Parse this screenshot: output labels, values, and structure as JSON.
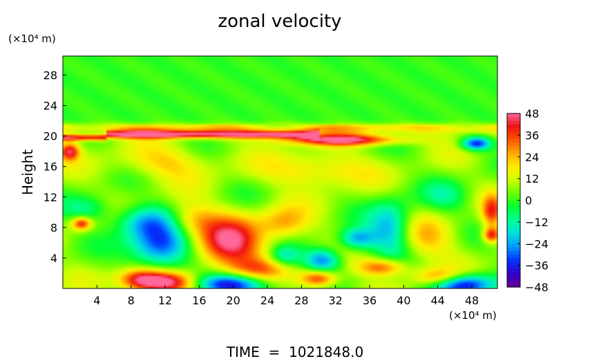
{
  "chart_data": {
    "type": "heatmap",
    "title": "zonal velocity",
    "xlabel": "",
    "ylabel": "Height",
    "x_unit": "(×10⁴ m)",
    "y_unit": "(×10⁴ m)",
    "footer": "TIME  =  1021848.0",
    "xlim": [
      0,
      51
    ],
    "ylim": [
      0,
      30.5
    ],
    "x_ticks": [
      4,
      8,
      12,
      16,
      20,
      24,
      28,
      32,
      36,
      40,
      44,
      48
    ],
    "y_ticks": [
      4,
      8,
      12,
      16,
      20,
      24,
      28
    ],
    "colorbar": {
      "range": [
        -48,
        48
      ],
      "ticks": [
        48,
        36,
        24,
        12,
        0,
        -12,
        -24,
        -36,
        -48
      ],
      "colors": [
        "#660099",
        "#3300cc",
        "#0033ff",
        "#0099ff",
        "#00dddd",
        "#00ff99",
        "#00ff33",
        "#66ff00",
        "#ccff00",
        "#ffee00",
        "#ffaa00",
        "#ff5500",
        "#ee1111",
        "#ff6699"
      ]
    },
    "background_value": 6,
    "features": [
      {
        "x": 11.5,
        "y": 5.5,
        "sx": 2.5,
        "sy": 2.0,
        "v": -42
      },
      {
        "x": 9.5,
        "y": 8.8,
        "sx": 2.5,
        "sy": 1.5,
        "v": -24
      },
      {
        "x": 19.5,
        "y": 5.8,
        "sx": 2.8,
        "sy": 2.5,
        "v": 40
      },
      {
        "x": 12,
        "y": 0.8,
        "sx": 2.5,
        "sy": 1.0,
        "v": 46
      },
      {
        "x": 9,
        "y": 1.2,
        "sx": 1.8,
        "sy": 1.0,
        "v": 30
      },
      {
        "x": 19.5,
        "y": 0.5,
        "sx": 3.0,
        "sy": 1.0,
        "v": -48
      },
      {
        "x": 30.5,
        "y": 3.7,
        "sx": 1.5,
        "sy": 1.1,
        "v": -34
      },
      {
        "x": 26,
        "y": 4.2,
        "sx": 1.3,
        "sy": 1.0,
        "v": -20
      },
      {
        "x": 30,
        "y": 1.3,
        "sx": 1.5,
        "sy": 0.8,
        "v": 36
      },
      {
        "x": 34.5,
        "y": 6.5,
        "sx": 1.5,
        "sy": 1.0,
        "v": -30
      },
      {
        "x": 38.5,
        "y": 7.8,
        "sx": 1.8,
        "sy": 2.5,
        "v": -30
      },
      {
        "x": 37.5,
        "y": 2.8,
        "sx": 2.0,
        "sy": 0.8,
        "v": 30
      },
      {
        "x": 47,
        "y": 0.5,
        "sx": 2.5,
        "sy": 1.0,
        "v": -48
      },
      {
        "x": 44,
        "y": 1.5,
        "sx": 2.0,
        "sy": 0.8,
        "v": 24
      },
      {
        "x": 2.2,
        "y": 8.5,
        "sx": 0.8,
        "sy": 0.6,
        "v": 36
      },
      {
        "x": 0.8,
        "y": 18,
        "sx": 0.8,
        "sy": 0.8,
        "v": 36
      },
      {
        "x": 33,
        "y": 19.5,
        "sx": 5.0,
        "sy": 0.5,
        "v": 42
      },
      {
        "x": 48.5,
        "y": 19,
        "sx": 1.2,
        "sy": 0.6,
        "v": -42
      },
      {
        "x": 45,
        "y": 12,
        "sx": 2.0,
        "sy": 1.5,
        "v": -12
      },
      {
        "x": 3,
        "y": 10.5,
        "sx": 2.0,
        "sy": 1.2,
        "v": -16
      },
      {
        "x": 50.3,
        "y": 10,
        "sx": 0.8,
        "sy": 1.5,
        "v": 30
      },
      {
        "x": 50.3,
        "y": 7,
        "sx": 0.7,
        "sy": 0.7,
        "v": 36
      },
      {
        "x": 15,
        "y": 9,
        "sx": 2.0,
        "sy": 1.5,
        "v": 18
      },
      {
        "x": 26,
        "y": 8.5,
        "sx": 2.0,
        "sy": 1.5,
        "v": 20
      },
      {
        "x": 23,
        "y": 2.5,
        "sx": 2.5,
        "sy": 1.0,
        "v": 18
      },
      {
        "x": 42.5,
        "y": 6.5,
        "sx": 2.5,
        "sy": 2.0,
        "v": 16
      },
      {
        "x": 30,
        "y": 15.5,
        "sx": 4.0,
        "sy": 1.5,
        "v": 18
      },
      {
        "x": 12,
        "y": 16.5,
        "sx": 4.0,
        "sy": 1.5,
        "v": 15
      }
    ],
    "bands": [
      {
        "y": 20.2,
        "sy": 0.35,
        "x0": 5,
        "x1": 30,
        "v": 42
      },
      {
        "y": 19.8,
        "sy": 0.3,
        "x0": 0,
        "x1": 5,
        "v": 40
      },
      {
        "y": 21.0,
        "sy": 0.5,
        "x0": 0,
        "x1": 51,
        "v": 14
      },
      {
        "y": 22.5,
        "sy": 0.8,
        "x0": 0,
        "x1": 51,
        "v": 0
      }
    ]
  }
}
